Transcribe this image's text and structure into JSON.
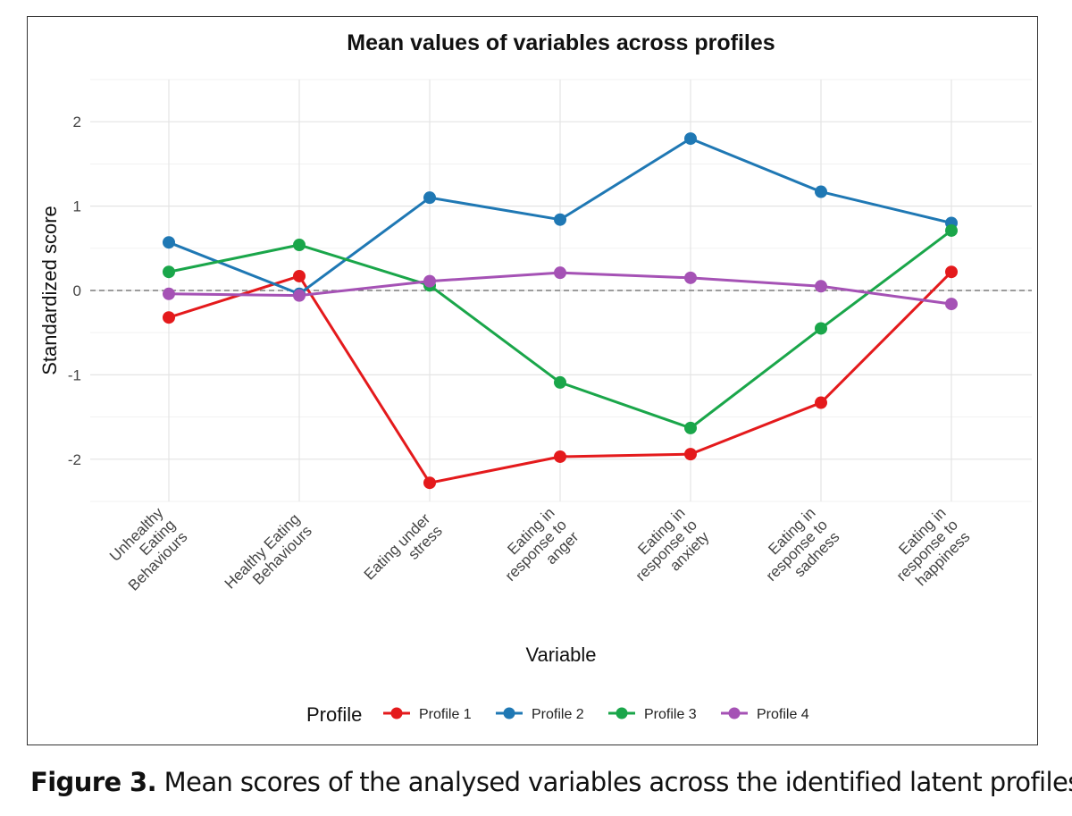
{
  "chart_data": {
    "type": "line",
    "title": "Mean values of variables across profiles",
    "xlabel": "Variable",
    "ylabel": "Standardized score",
    "categories": [
      [
        "Unhealthy",
        "Eating",
        "Behaviours"
      ],
      [
        "Healthy Eating",
        "Behaviours"
      ],
      [
        "Eating under",
        "stress"
      ],
      [
        "Eating in",
        "response to",
        "anger"
      ],
      [
        "Eating in",
        "response to",
        "anxiety"
      ],
      [
        "Eating in",
        "response to",
        "sadness"
      ],
      [
        "Eating in",
        "response to",
        "happiness"
      ]
    ],
    "yticks": [
      "-2",
      "-1",
      "0",
      "1",
      "2"
    ],
    "ylim": [
      -2.5,
      2.5
    ],
    "reference_line": 0,
    "grid": true,
    "legend": {
      "title": "Profile",
      "placement": "bottom"
    },
    "series": [
      {
        "name": "Profile 1",
        "color": "#e41a1c",
        "values": [
          -0.32,
          0.17,
          -2.28,
          -1.97,
          -1.94,
          -1.33,
          0.22
        ]
      },
      {
        "name": "Profile 2",
        "color": "#1f78b4",
        "values": [
          0.57,
          -0.04,
          1.1,
          0.84,
          1.8,
          1.17,
          0.8
        ]
      },
      {
        "name": "Profile 3",
        "color": "#1aa64a",
        "values": [
          0.22,
          0.54,
          0.06,
          -1.09,
          -1.63,
          -0.45,
          0.71
        ]
      },
      {
        "name": "Profile 4",
        "color": "#a552b5",
        "values": [
          -0.04,
          -0.06,
          0.11,
          0.21,
          0.15,
          0.05,
          -0.16
        ]
      }
    ]
  },
  "caption": {
    "label": "Figure 3.",
    "text": "Mean scores of the analysed variables across the identified latent profiles"
  }
}
